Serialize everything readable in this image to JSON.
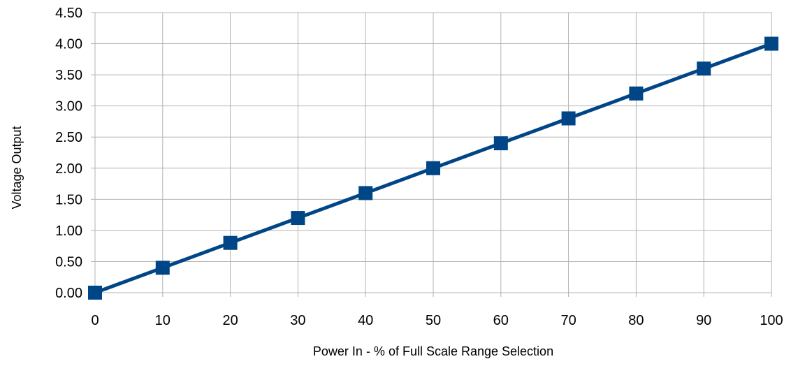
{
  "chart_data": {
    "type": "line",
    "title": "",
    "xlabel": "Power In - % of Full Scale Range Selection",
    "ylabel": "Voltage Output",
    "x": [
      0,
      10,
      20,
      30,
      40,
      50,
      60,
      70,
      80,
      90,
      100
    ],
    "xlim": [
      0,
      100
    ],
    "ylim": [
      0,
      4.5
    ],
    "x_ticks": [
      "0",
      "10",
      "20",
      "30",
      "40",
      "50",
      "60",
      "70",
      "80",
      "90",
      "100"
    ],
    "y_ticks": [
      "0.00",
      "0.50",
      "1.00",
      "1.50",
      "2.00",
      "2.50",
      "3.00",
      "3.50",
      "4.00",
      "4.50"
    ],
    "grid": true,
    "legend": "none",
    "series": [
      {
        "color": "#004586",
        "marker": "square",
        "values": [
          0.0,
          0.4,
          0.8,
          1.2,
          1.6,
          2.0,
          2.4,
          2.8,
          3.2,
          3.6,
          4.0
        ]
      }
    ]
  }
}
